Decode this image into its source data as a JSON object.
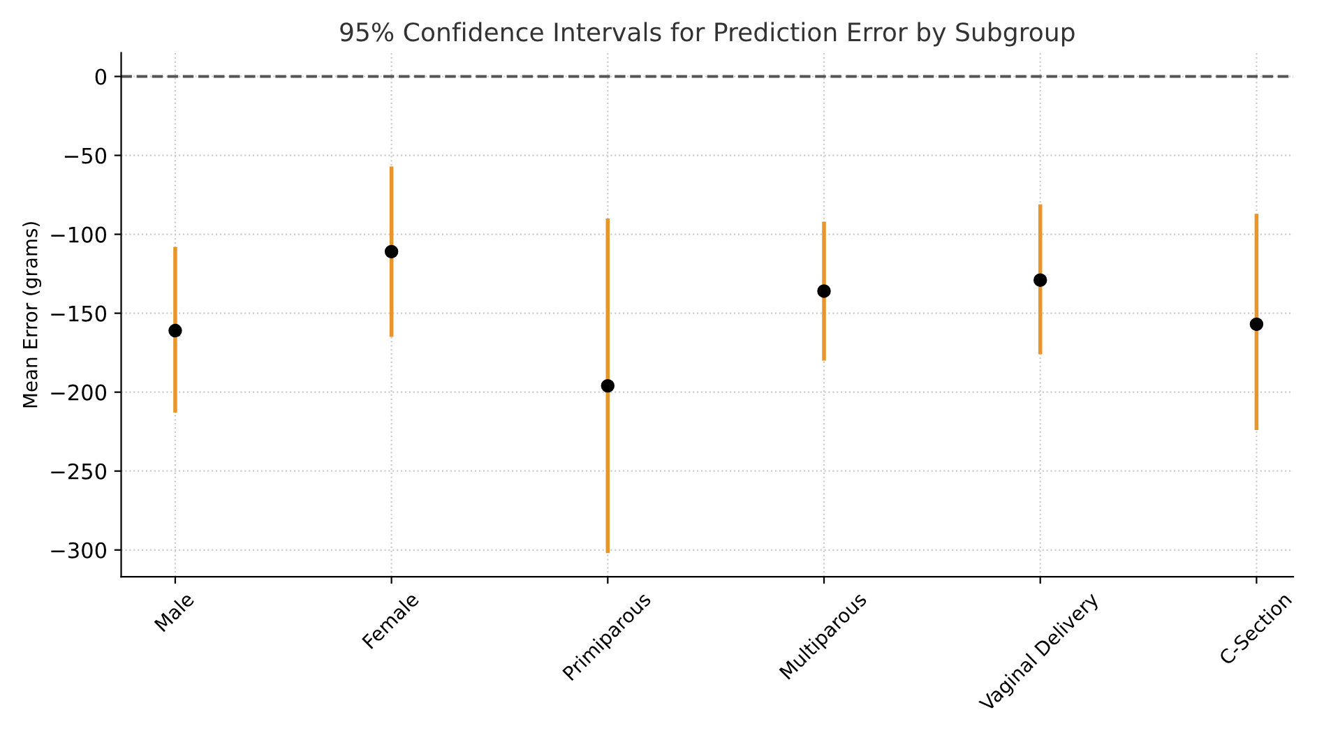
{
  "chart_data": {
    "type": "scatter",
    "title": "95% Confidence Intervals for Prediction Error by Subgroup",
    "ylabel": "Mean Error (grams)",
    "categories": [
      "Male",
      "Female",
      "Primiparous",
      "Multiparous",
      "Vaginal Delivery",
      "C-Section"
    ],
    "series": [
      {
        "color": "#e8962c",
        "colors": [
          "#000000",
          "#000000",
          "#000000",
          "#000000",
          "#000000",
          "#000000"
        ],
        "values": [
          -161,
          -111,
          -196,
          -136,
          -129,
          -157
        ],
        "errors": [
          [
            -213,
            -108
          ],
          [
            -165,
            -57
          ],
          [
            -302,
            -90
          ],
          [
            -180,
            -92
          ],
          [
            -176,
            -81
          ],
          [
            -224,
            -87
          ]
        ]
      }
    ],
    "ylim": [
      -317,
      15
    ],
    "yticks": [
      {
        "value": 0,
        "label": "0"
      },
      {
        "value": -50,
        "label": "−50"
      },
      {
        "value": -100,
        "label": "−100"
      },
      {
        "value": -150,
        "label": "−150"
      },
      {
        "value": -200,
        "label": "−200"
      },
      {
        "value": -250,
        "label": "−250"
      },
      {
        "value": -300,
        "label": "−300"
      }
    ],
    "ref_lines": [
      {
        "axis": "y",
        "value": 0,
        "color": "#555555",
        "line_style": "dashed"
      }
    ],
    "grid": true,
    "marker": "circle"
  }
}
